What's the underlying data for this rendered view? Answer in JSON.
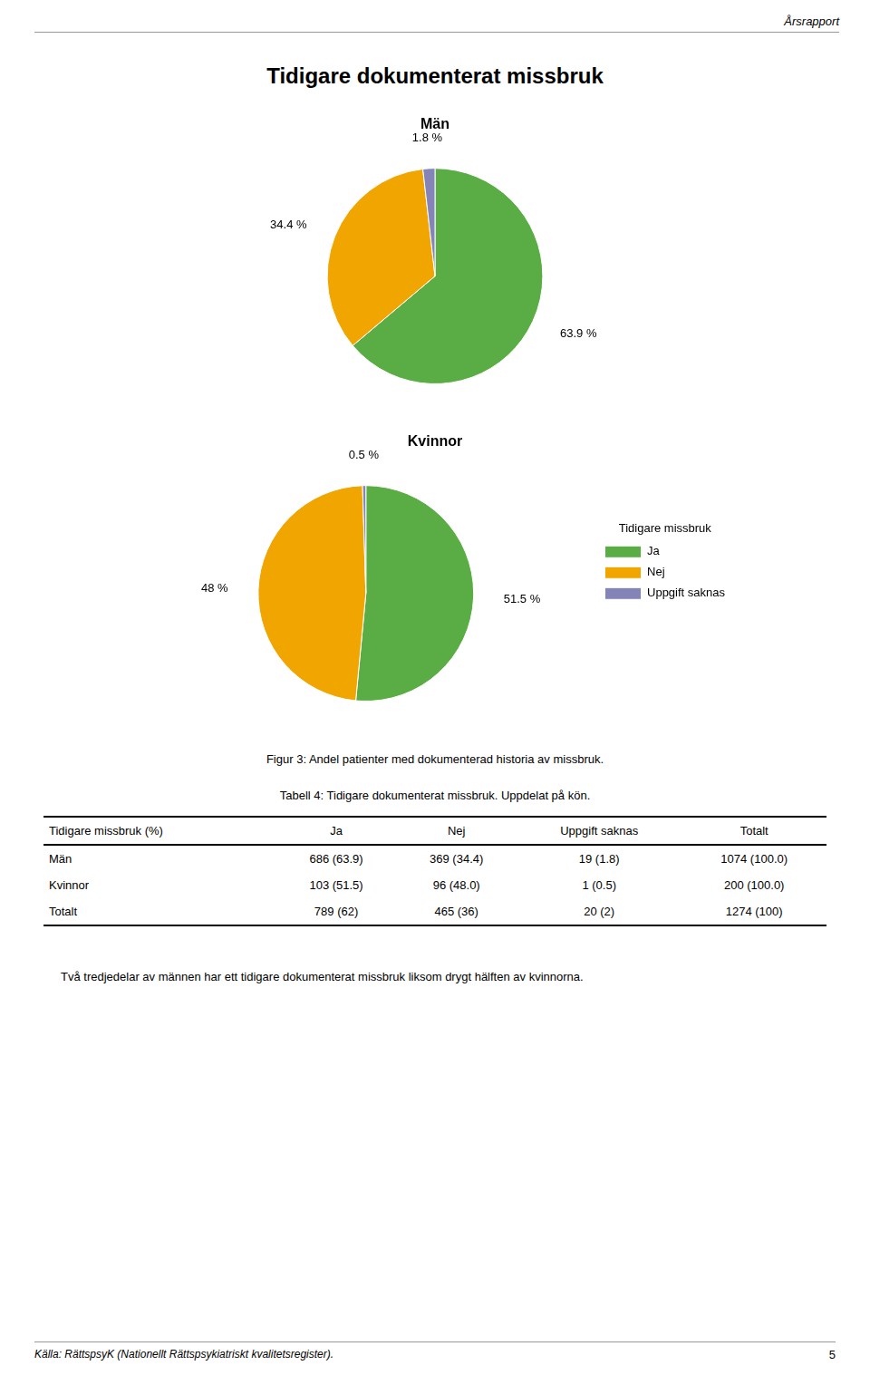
{
  "header": "Årsrapport",
  "title": "Tidigare dokumenterat missbruk",
  "chart_data": [
    {
      "type": "pie",
      "title": "Män",
      "categories": [
        "Ja",
        "Nej",
        "Uppgift saknas"
      ],
      "values": [
        63.9,
        34.4,
        1.8
      ],
      "value_labels": [
        "63.9 %",
        "34.4 %",
        "1.8 %"
      ],
      "colors": [
        "#5aac44",
        "#f0a500",
        "#8484b8"
      ],
      "data_labels": true
    },
    {
      "type": "pie",
      "title": "Kvinnor",
      "categories": [
        "Ja",
        "Nej",
        "Uppgift saknas"
      ],
      "values": [
        51.5,
        48.0,
        0.5
      ],
      "value_labels": [
        "51.5 %",
        "48 %",
        "0.5 %"
      ],
      "colors": [
        "#5aac44",
        "#f0a500",
        "#8484b8"
      ],
      "data_labels": true,
      "legend": "right",
      "legend_title": "Tidigare missbruk"
    }
  ],
  "figure_caption": "Figur 3: Andel patienter med dokumenterad historia av missbruk.",
  "table": {
    "title": "Tabell 4: Tidigare dokumenterat missbruk. Uppdelat på kön.",
    "columns": [
      "Tidigare missbruk (%)",
      "Ja",
      "Nej",
      "Uppgift saknas",
      "Totalt"
    ],
    "rows": [
      [
        "Män",
        "686 (63.9)",
        "369 (34.4)",
        "19 (1.8)",
        "1074 (100.0)"
      ],
      [
        "Kvinnor",
        "103 (51.5)",
        "96 (48.0)",
        "1 (0.5)",
        "200 (100.0)"
      ],
      [
        "Totalt",
        "789 (62)",
        "465 (36)",
        "20 (2)",
        "1274 (100)"
      ]
    ]
  },
  "footer": "Två tredjedelar av männen har ett tidigare dokumenterat missbruk liksom drygt hälften av kvinnorna.",
  "source": "Källa: RättspsyK (Nationellt Rättspsykiatriskt kvalitetsregister).",
  "page_number": "5"
}
